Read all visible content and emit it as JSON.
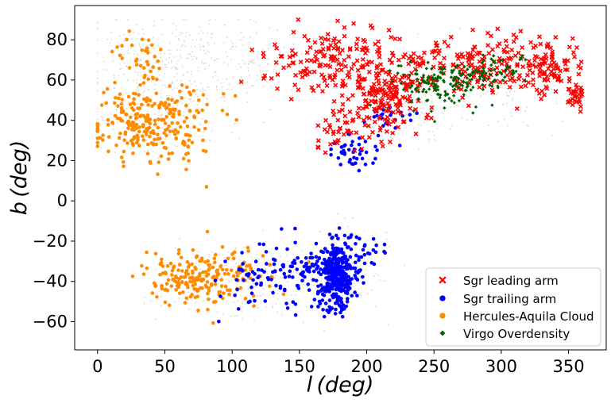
{
  "chart_data": {
    "type": "scatter",
    "title": "",
    "xlabel": "l (deg)",
    "ylabel": "b (deg)",
    "xlim": [
      -17,
      378
    ],
    "ylim": [
      -74,
      97
    ],
    "xticks": [
      "0",
      "50",
      "100",
      "150",
      "200",
      "250",
      "300",
      "350"
    ],
    "xtick_values": [
      0,
      50,
      100,
      150,
      200,
      250,
      300,
      350
    ],
    "yticks": [
      "−60",
      "−40",
      "−20",
      "0",
      "20",
      "40",
      "60",
      "80"
    ],
    "ytick_values": [
      -60,
      -40,
      -20,
      0,
      20,
      40,
      60,
      80
    ],
    "grid": false,
    "legend_position": "lower-right",
    "background": {
      "name": "",
      "color": "#c8c8c8",
      "regions": [
        {
          "cx": 55,
          "cy": 70,
          "rx": 55,
          "ry": 20,
          "n": 260
        },
        {
          "cx": 110,
          "cy": 70,
          "rx": 35,
          "ry": 15,
          "n": 90
        },
        {
          "cx": 50,
          "cy": 45,
          "rx": 45,
          "ry": 20,
          "n": 150
        },
        {
          "cx": 230,
          "cy": 50,
          "rx": 45,
          "ry": 22,
          "n": 140
        },
        {
          "cx": 300,
          "cy": 60,
          "rx": 60,
          "ry": 20,
          "n": 160
        },
        {
          "cx": 110,
          "cy": -40,
          "rx": 60,
          "ry": 18,
          "n": 180
        },
        {
          "cx": 185,
          "cy": -35,
          "rx": 30,
          "ry": 20,
          "n": 80
        }
      ]
    },
    "series": [
      {
        "name": "Sgr leading arm",
        "color": "#ff0000",
        "marker": "x",
        "regions": [
          {
            "cx": 175,
            "cy": 70,
            "rx": 45,
            "ry": 16,
            "n": 170
          },
          {
            "cx": 215,
            "cy": 50,
            "rx": 25,
            "ry": 15,
            "n": 160
          },
          {
            "cx": 270,
            "cy": 68,
            "rx": 50,
            "ry": 13,
            "n": 190
          },
          {
            "cx": 335,
            "cy": 65,
            "rx": 25,
            "ry": 15,
            "n": 110
          },
          {
            "cx": 180,
            "cy": 35,
            "rx": 18,
            "ry": 10,
            "n": 40
          },
          {
            "cx": 355,
            "cy": 52,
            "rx": 6,
            "ry": 7,
            "n": 30
          }
        ]
      },
      {
        "name": "Sgr trailing arm",
        "color": "#0000ff",
        "marker": "o",
        "regions": [
          {
            "cx": 178,
            "cy": -36,
            "rx": 12,
            "ry": 16,
            "n": 320
          },
          {
            "cx": 150,
            "cy": -35,
            "rx": 28,
            "ry": 16,
            "n": 100
          },
          {
            "cx": 115,
            "cy": -40,
            "rx": 20,
            "ry": 12,
            "n": 40
          },
          {
            "cx": 190,
            "cy": 25,
            "rx": 18,
            "ry": 10,
            "n": 45
          },
          {
            "cx": 200,
            "cy": -25,
            "rx": 12,
            "ry": 10,
            "n": 25
          },
          {
            "cx": 215,
            "cy": 42,
            "rx": 18,
            "ry": 5,
            "n": 20
          }
        ]
      },
      {
        "name": "Hercules-Aquila Cloud",
        "color": "#ff8c00",
        "marker": "o",
        "regions": [
          {
            "cx": 40,
            "cy": 40,
            "rx": 38,
            "ry": 18,
            "n": 270
          },
          {
            "cx": 30,
            "cy": 72,
            "rx": 18,
            "ry": 14,
            "n": 30
          },
          {
            "cx": 70,
            "cy": -38,
            "rx": 30,
            "ry": 12,
            "n": 170
          },
          {
            "cx": 110,
            "cy": -35,
            "rx": 25,
            "ry": 12,
            "n": 45
          }
        ]
      },
      {
        "name": "Virgo Overdensity",
        "color": "#006400",
        "marker": "D",
        "regions": [
          {
            "cx": 255,
            "cy": 58,
            "rx": 30,
            "ry": 10,
            "n": 140
          },
          {
            "cx": 295,
            "cy": 65,
            "rx": 25,
            "ry": 7,
            "n": 60
          }
        ]
      }
    ]
  }
}
